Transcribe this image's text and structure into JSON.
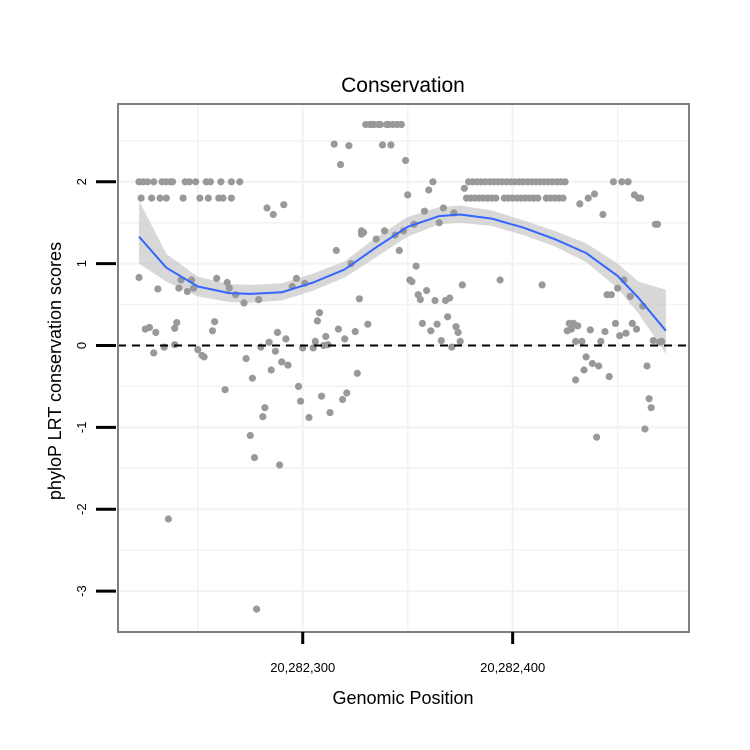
{
  "chart_data": {
    "type": "scatter",
    "title": "Conservation",
    "xlabel": "Genomic Position",
    "ylabel": "phyloP LRT conservation scores",
    "xlim": [
      20282212,
      20282484
    ],
    "ylim": [
      -3.5,
      2.95
    ],
    "x_ticks": [
      {
        "value": 20282300,
        "label": "20,282,300"
      },
      {
        "value": 20282400,
        "label": "20,282,400"
      }
    ],
    "y_ticks": [
      {
        "value": -3,
        "label": "-3"
      },
      {
        "value": -2,
        "label": "-2"
      },
      {
        "value": -1,
        "label": "-1"
      },
      {
        "value": 0,
        "label": "0"
      },
      {
        "value": 1,
        "label": "1"
      },
      {
        "value": 2,
        "label": "2"
      }
    ],
    "x_minor_grid": [
      20282250,
      20282350,
      20282450
    ],
    "y_minor_grid": [
      -2.5,
      -1.5,
      -0.5,
      0.5,
      1.5,
      2.5
    ],
    "reference_line": {
      "y": 0,
      "style": "dashed",
      "color": "#000000"
    },
    "colors": {
      "points": "#999999",
      "smooth_line": "#3366FF",
      "ribbon": "#BEBEBE",
      "panel_border": "#7F7F7F",
      "grid": "#F2F2F2"
    },
    "smooth": {
      "x": [
        20282222,
        20282235,
        20282250,
        20282265,
        20282275,
        20282290,
        20282305,
        20282320,
        20282335,
        20282350,
        20282365,
        20282375,
        20282390,
        20282405,
        20282420,
        20282435,
        20282450,
        20282460,
        20282473
      ],
      "y": [
        1.33,
        0.95,
        0.72,
        0.64,
        0.63,
        0.65,
        0.77,
        0.93,
        1.2,
        1.45,
        1.58,
        1.6,
        1.55,
        1.44,
        1.3,
        1.13,
        0.85,
        0.58,
        0.18
      ],
      "lower": [
        1.0,
        0.78,
        0.6,
        0.53,
        0.52,
        0.55,
        0.67,
        0.83,
        1.08,
        1.33,
        1.48,
        1.5,
        1.46,
        1.35,
        1.21,
        1.02,
        0.7,
        0.39,
        -0.1
      ],
      "upper": [
        1.77,
        1.12,
        0.84,
        0.75,
        0.74,
        0.76,
        0.88,
        1.03,
        1.32,
        1.57,
        1.69,
        1.71,
        1.65,
        1.53,
        1.4,
        1.25,
        1.0,
        0.78,
        0.68
      ]
    },
    "points": [
      [
        20282222,
        0.83
      ],
      [
        20282222,
        2.0
      ],
      [
        20282223,
        1.8
      ],
      [
        20282224,
        2.0
      ],
      [
        20282225,
        0.2
      ],
      [
        20282226,
        2.0
      ],
      [
        20282227,
        0.22
      ],
      [
        20282228,
        1.8
      ],
      [
        20282229,
        2.0
      ],
      [
        20282229,
        -0.09
      ],
      [
        20282230,
        0.16
      ],
      [
        20282231,
        0.69
      ],
      [
        20282232,
        1.8
      ],
      [
        20282233,
        2.0
      ],
      [
        20282234,
        -0.02
      ],
      [
        20282235,
        2.0
      ],
      [
        20282235,
        1.8
      ],
      [
        20282236,
        -2.12
      ],
      [
        20282237,
        2.0
      ],
      [
        20282238,
        2.0
      ],
      [
        20282239,
        0.21
      ],
      [
        20282239,
        0.01
      ],
      [
        20282240,
        0.28
      ],
      [
        20282241,
        0.7
      ],
      [
        20282242,
        0.8
      ],
      [
        20282243,
        1.8
      ],
      [
        20282244,
        2.0
      ],
      [
        20282245,
        0.66
      ],
      [
        20282246,
        2.0
      ],
      [
        20282247,
        0.8
      ],
      [
        20282248,
        0.7
      ],
      [
        20282249,
        2.0
      ],
      [
        20282250,
        -0.05
      ],
      [
        20282251,
        1.8
      ],
      [
        20282252,
        -0.12
      ],
      [
        20282253,
        -0.14
      ],
      [
        20282254,
        2.0
      ],
      [
        20282255,
        1.8
      ],
      [
        20282256,
        2.0
      ],
      [
        20282257,
        0.18
      ],
      [
        20282258,
        0.29
      ],
      [
        20282259,
        0.82
      ],
      [
        20282260,
        1.8
      ],
      [
        20282261,
        2.0
      ],
      [
        20282262,
        1.8
      ],
      [
        20282263,
        -0.54
      ],
      [
        20282264,
        0.77
      ],
      [
        20282265,
        0.7
      ],
      [
        20282266,
        2.0
      ],
      [
        20282266,
        1.8
      ],
      [
        20282268,
        0.62
      ],
      [
        20282270,
        2.0
      ],
      [
        20282272,
        0.52
      ],
      [
        20282273,
        -0.16
      ],
      [
        20282275,
        -1.1
      ],
      [
        20282276,
        -0.4
      ],
      [
        20282277,
        -1.37
      ],
      [
        20282278,
        -3.22
      ],
      [
        20282279,
        0.56
      ],
      [
        20282280,
        -0.02
      ],
      [
        20282281,
        -0.87
      ],
      [
        20282282,
        -0.76
      ],
      [
        20282283,
        1.68
      ],
      [
        20282284,
        0.04
      ],
      [
        20282285,
        -0.3
      ],
      [
        20282286,
        1.6
      ],
      [
        20282287,
        -0.07
      ],
      [
        20282288,
        0.16
      ],
      [
        20282289,
        -1.46
      ],
      [
        20282290,
        -0.2
      ],
      [
        20282291,
        1.72
      ],
      [
        20282292,
        0.08
      ],
      [
        20282293,
        -0.24
      ],
      [
        20282295,
        0.72
      ],
      [
        20282297,
        0.82
      ],
      [
        20282298,
        -0.5
      ],
      [
        20282299,
        -0.68
      ],
      [
        20282300,
        -0.03
      ],
      [
        20282301,
        0.76
      ],
      [
        20282303,
        -0.88
      ],
      [
        20282305,
        -0.03
      ],
      [
        20282306,
        0.05
      ],
      [
        20282307,
        0.3
      ],
      [
        20282308,
        0.4
      ],
      [
        20282309,
        -0.62
      ],
      [
        20282310,
        0.0
      ],
      [
        20282311,
        0.11
      ],
      [
        20282312,
        0.01
      ],
      [
        20282313,
        -0.82
      ],
      [
        20282315,
        2.46
      ],
      [
        20282316,
        1.16
      ],
      [
        20282317,
        0.2
      ],
      [
        20282318,
        2.21
      ],
      [
        20282319,
        -0.66
      ],
      [
        20282320,
        0.08
      ],
      [
        20282321,
        -0.58
      ],
      [
        20282322,
        2.44
      ],
      [
        20282323,
        1.0
      ],
      [
        20282325,
        0.17
      ],
      [
        20282326,
        -0.34
      ],
      [
        20282327,
        0.57
      ],
      [
        20282328,
        1.36
      ],
      [
        20282328,
        1.4
      ],
      [
        20282329,
        1.38
      ],
      [
        20282330,
        2.7
      ],
      [
        20282331,
        0.26
      ],
      [
        20282332,
        2.7
      ],
      [
        20282333,
        2.7
      ],
      [
        20282334,
        2.7
      ],
      [
        20282335,
        1.3
      ],
      [
        20282336,
        2.7
      ],
      [
        20282337,
        2.7
      ],
      [
        20282338,
        2.45
      ],
      [
        20282339,
        1.4
      ],
      [
        20282340,
        2.7
      ],
      [
        20282341,
        2.7
      ],
      [
        20282342,
        2.45
      ],
      [
        20282343,
        2.7
      ],
      [
        20282344,
        1.35
      ],
      [
        20282345,
        2.7
      ],
      [
        20282346,
        1.16
      ],
      [
        20282347,
        2.7
      ],
      [
        20282348,
        1.4
      ],
      [
        20282349,
        2.26
      ],
      [
        20282350,
        1.84
      ],
      [
        20282351,
        0.8
      ],
      [
        20282352,
        0.78
      ],
      [
        20282353,
        1.48
      ],
      [
        20282354,
        0.97
      ],
      [
        20282355,
        0.62
      ],
      [
        20282356,
        0.56
      ],
      [
        20282357,
        0.27
      ],
      [
        20282358,
        1.64
      ],
      [
        20282359,
        0.67
      ],
      [
        20282360,
        1.9
      ],
      [
        20282361,
        0.18
      ],
      [
        20282362,
        2.0
      ],
      [
        20282363,
        0.55
      ],
      [
        20282364,
        0.26
      ],
      [
        20282365,
        1.5
      ],
      [
        20282366,
        0.06
      ],
      [
        20282367,
        1.68
      ],
      [
        20282368,
        0.55
      ],
      [
        20282369,
        0.35
      ],
      [
        20282370,
        0.58
      ],
      [
        20282371,
        -0.02
      ],
      [
        20282372,
        1.62
      ],
      [
        20282373,
        0.23
      ],
      [
        20282374,
        0.16
      ],
      [
        20282375,
        0.05
      ],
      [
        20282376,
        0.74
      ],
      [
        20282377,
        1.92
      ],
      [
        20282378,
        1.8
      ],
      [
        20282379,
        2.0
      ],
      [
        20282380,
        1.8
      ],
      [
        20282381,
        2.0
      ],
      [
        20282382,
        1.8
      ],
      [
        20282383,
        2.0
      ],
      [
        20282384,
        1.8
      ],
      [
        20282385,
        2.0
      ],
      [
        20282386,
        1.8
      ],
      [
        20282387,
        2.0
      ],
      [
        20282388,
        1.8
      ],
      [
        20282389,
        2.0
      ],
      [
        20282390,
        1.8
      ],
      [
        20282391,
        2.0
      ],
      [
        20282392,
        1.8
      ],
      [
        20282393,
        2.0
      ],
      [
        20282394,
        0.8
      ],
      [
        20282395,
        2.0
      ],
      [
        20282396,
        1.8
      ],
      [
        20282397,
        2.0
      ],
      [
        20282398,
        1.8
      ],
      [
        20282399,
        2.0
      ],
      [
        20282400,
        1.8
      ],
      [
        20282401,
        2.0
      ],
      [
        20282402,
        1.8
      ],
      [
        20282403,
        2.0
      ],
      [
        20282404,
        1.8
      ],
      [
        20282405,
        2.0
      ],
      [
        20282406,
        1.8
      ],
      [
        20282407,
        2.0
      ],
      [
        20282408,
        1.8
      ],
      [
        20282409,
        2.0
      ],
      [
        20282410,
        1.8
      ],
      [
        20282411,
        2.0
      ],
      [
        20282412,
        1.8
      ],
      [
        20282413,
        2.0
      ],
      [
        20282414,
        0.74
      ],
      [
        20282415,
        2.0
      ],
      [
        20282416,
        1.8
      ],
      [
        20282417,
        2.0
      ],
      [
        20282418,
        1.8
      ],
      [
        20282419,
        2.0
      ],
      [
        20282420,
        1.8
      ],
      [
        20282421,
        2.0
      ],
      [
        20282422,
        1.8
      ],
      [
        20282423,
        2.0
      ],
      [
        20282424,
        1.8
      ],
      [
        20282425,
        2.0
      ],
      [
        20282426,
        0.18
      ],
      [
        20282427,
        0.27
      ],
      [
        20282428,
        0.2
      ],
      [
        20282429,
        0.27
      ],
      [
        20282430,
        0.05
      ],
      [
        20282430,
        -0.42
      ],
      [
        20282431,
        0.24
      ],
      [
        20282432,
        1.73
      ],
      [
        20282433,
        0.05
      ],
      [
        20282434,
        -0.3
      ],
      [
        20282435,
        -0.14
      ],
      [
        20282436,
        1.8
      ],
      [
        20282437,
        0.19
      ],
      [
        20282438,
        -0.22
      ],
      [
        20282439,
        1.85
      ],
      [
        20282440,
        -1.12
      ],
      [
        20282441,
        -0.25
      ],
      [
        20282442,
        0.05
      ],
      [
        20282443,
        1.6
      ],
      [
        20282444,
        0.17
      ],
      [
        20282445,
        0.62
      ],
      [
        20282446,
        -0.38
      ],
      [
        20282447,
        0.62
      ],
      [
        20282448,
        2.0
      ],
      [
        20282449,
        0.27
      ],
      [
        20282450,
        0.7
      ],
      [
        20282451,
        0.12
      ],
      [
        20282452,
        2.0
      ],
      [
        20282453,
        0.8
      ],
      [
        20282454,
        0.15
      ],
      [
        20282455,
        2.0
      ],
      [
        20282456,
        0.6
      ],
      [
        20282457,
        0.27
      ],
      [
        20282458,
        1.84
      ],
      [
        20282459,
        0.2
      ],
      [
        20282460,
        1.8
      ],
      [
        20282461,
        1.8
      ],
      [
        20282462,
        0.48
      ],
      [
        20282463,
        -1.02
      ],
      [
        20282464,
        -0.25
      ],
      [
        20282465,
        -0.65
      ],
      [
        20282466,
        -0.76
      ],
      [
        20282467,
        0.06
      ],
      [
        20282468,
        1.48
      ],
      [
        20282469,
        1.48
      ],
      [
        20282470,
        0.04
      ],
      [
        20282471,
        0.05
      ]
    ]
  }
}
